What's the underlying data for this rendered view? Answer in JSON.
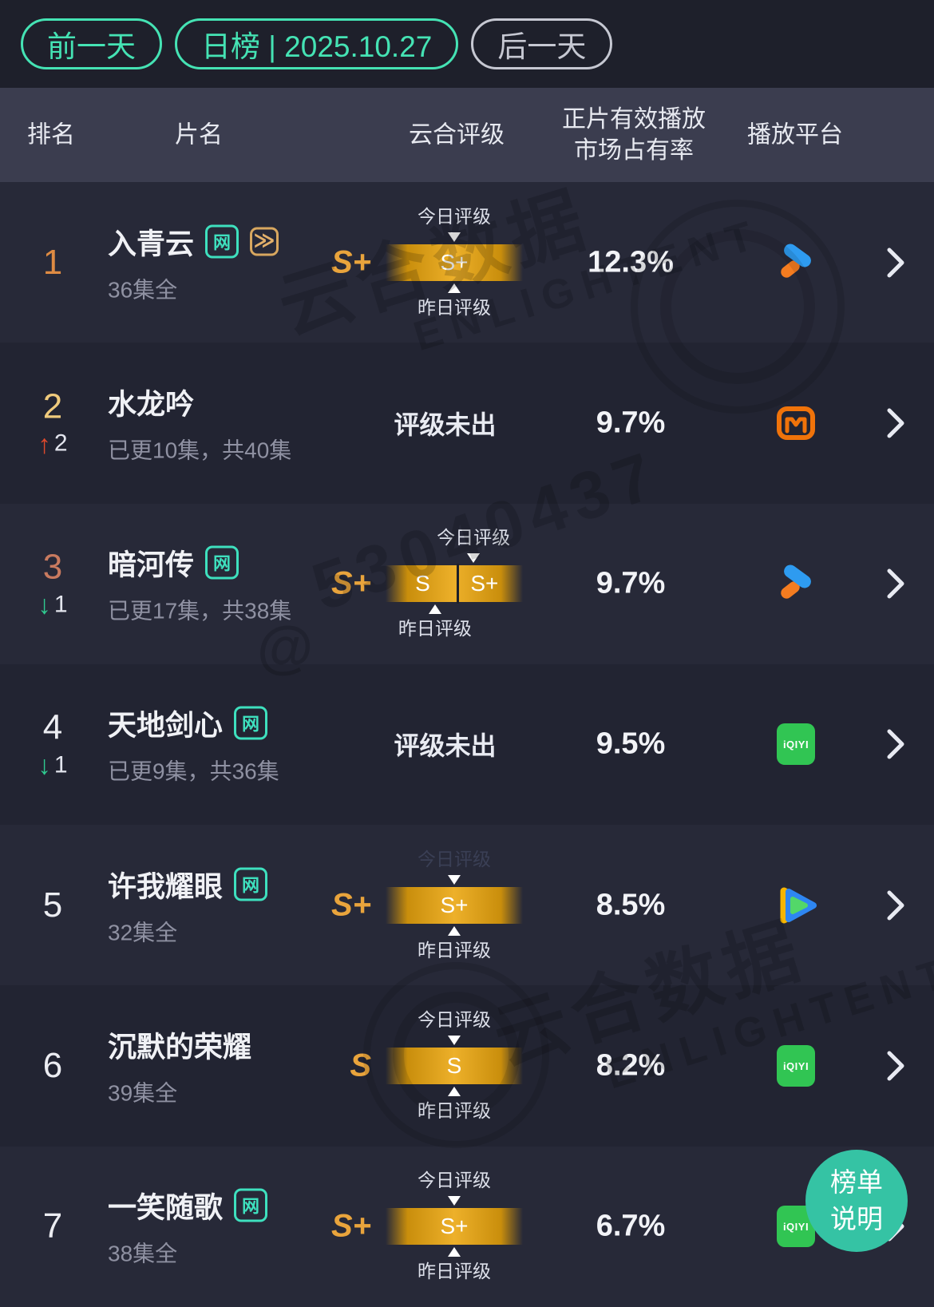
{
  "topbar": {
    "prev_label": "前一天",
    "current_label": "日榜 | 2025.10.27",
    "next_label": "后一天"
  },
  "table": {
    "headers": {
      "rank": "排名",
      "title": "片名",
      "rating": "云合评级",
      "share": "正片有效播放\n市场占有率",
      "platform": "播放平台"
    }
  },
  "labels": {
    "today": "今日评级",
    "yesterday": "昨日评级",
    "net_badge": "网",
    "no_rating": "评级未出"
  },
  "icons": {
    "speed_badge_glyph": "≫",
    "up_arrow": "↑",
    "down_arrow": "↓",
    "iqiyi_text": "iQIYI",
    "chevron": "›"
  },
  "colors": {
    "rank_first": "#DE8B43",
    "rank_second": "#EFCA7C",
    "rank_third": "#C87A5F",
    "rank_normal": "#ECEDF2",
    "accent_teal": "#45E3B4",
    "grade_gold": "#E9A43C",
    "bar_gold": "#EDB02A",
    "help_teal": "#35C3A4"
  },
  "rows": [
    {
      "rank": "1",
      "rank_color": "first",
      "change": null,
      "title": "入青云",
      "web_badge": true,
      "speed_badge": true,
      "episodes": "36集全",
      "rating": {
        "grade": "S+",
        "segments": [
          "S+"
        ],
        "today_segment": 0,
        "yesterday_segment": 0,
        "today_dim": false
      },
      "share": "12.3%",
      "platform": "youku"
    },
    {
      "rank": "2",
      "rank_color": "second",
      "change": {
        "dir": "up",
        "value": "2"
      },
      "title": "水龙吟",
      "web_badge": false,
      "speed_badge": false,
      "episodes": "已更10集，共40集",
      "rating": null,
      "share": "9.7%",
      "platform": "mgtv"
    },
    {
      "rank": "3",
      "rank_color": "third",
      "change": {
        "dir": "down",
        "value": "1"
      },
      "title": "暗河传",
      "web_badge": true,
      "speed_badge": false,
      "episodes": "已更17集，共38集",
      "rating": {
        "grade": "S+",
        "segments": [
          "S",
          "S+"
        ],
        "today_segment": 1,
        "yesterday_segment": 0,
        "today_dim": false
      },
      "share": "9.7%",
      "platform": "youku"
    },
    {
      "rank": "4",
      "rank_color": "normal",
      "change": {
        "dir": "down",
        "value": "1"
      },
      "title": "天地剑心",
      "web_badge": true,
      "speed_badge": false,
      "episodes": "已更9集，共36集",
      "rating": null,
      "share": "9.5%",
      "platform": "iqiyi"
    },
    {
      "rank": "5",
      "rank_color": "normal",
      "change": null,
      "title": "许我耀眼",
      "web_badge": true,
      "speed_badge": false,
      "episodes": "32集全",
      "rating": {
        "grade": "S+",
        "segments": [
          "S+"
        ],
        "today_segment": 0,
        "yesterday_segment": 0,
        "today_dim": true
      },
      "share": "8.5%",
      "platform": "tencent"
    },
    {
      "rank": "6",
      "rank_color": "normal",
      "change": null,
      "title": "沉默的荣耀",
      "web_badge": false,
      "speed_badge": false,
      "episodes": "39集全",
      "rating": {
        "grade": "S",
        "segments": [
          "S"
        ],
        "today_segment": 0,
        "yesterday_segment": 0,
        "today_dim": false
      },
      "share": "8.2%",
      "platform": "iqiyi"
    },
    {
      "rank": "7",
      "rank_color": "normal",
      "change": null,
      "title": "一笑随歌",
      "web_badge": true,
      "speed_badge": false,
      "episodes": "38集全",
      "rating": {
        "grade": "S+",
        "segments": [
          "S+"
        ],
        "today_segment": 0,
        "yesterday_segment": 0,
        "today_dim": false
      },
      "share": "6.7%",
      "platform": "iqiyi"
    }
  ],
  "help_button": {
    "line1": "榜单",
    "line2": "说明"
  },
  "watermarks": {
    "brand_cn": "云合数据",
    "brand_en": "ENLIGHTENT",
    "id_at": "@",
    "id_num": "53040437"
  }
}
